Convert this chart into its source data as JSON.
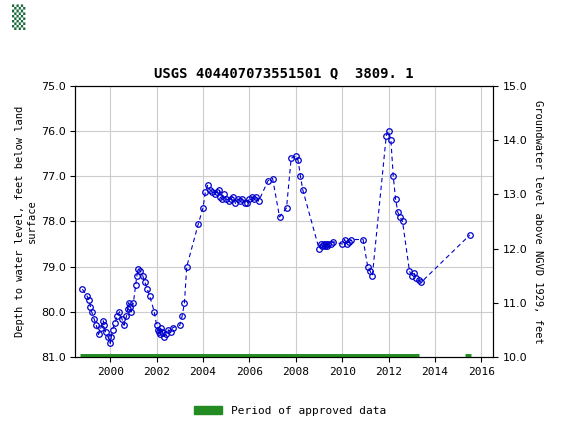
{
  "title": "USGS 404407073551501 Q  3809. 1",
  "ylabel_left": "Depth to water level, feet below land\nsurface",
  "ylabel_right": "Groundwater level above NGVD 1929, feet",
  "ylim_left": [
    81.0,
    75.0
  ],
  "ylim_right": [
    10.0,
    15.0
  ],
  "yticks_left": [
    75.0,
    76.0,
    77.0,
    78.0,
    79.0,
    80.0,
    81.0
  ],
  "yticks_right": [
    10.0,
    11.0,
    12.0,
    13.0,
    14.0,
    15.0
  ],
  "xlim": [
    1998.5,
    2016.5
  ],
  "xticks": [
    2000,
    2002,
    2004,
    2006,
    2008,
    2010,
    2012,
    2014,
    2016
  ],
  "header_color": "#1a6b3c",
  "data_color": "#0000cc",
  "approved_color": "#228B22",
  "background_color": "#ffffff",
  "grid_color": "#cccccc",
  "approved_bar_x_start": 1998.7,
  "approved_bar_x_end": 2013.3,
  "approved_bar_x2_start": 2015.3,
  "approved_bar_x2_end": 2015.55,
  "approved_bar_y": 81.0,
  "data_x": [
    1998.8,
    1999.0,
    1999.1,
    1999.15,
    1999.2,
    1999.3,
    1999.4,
    1999.5,
    1999.6,
    1999.7,
    1999.75,
    1999.8,
    1999.9,
    2000.0,
    2000.05,
    2000.1,
    2000.2,
    2000.3,
    2000.4,
    2000.5,
    2000.6,
    2000.7,
    2000.75,
    2000.8,
    2000.85,
    2000.9,
    2001.0,
    2001.1,
    2001.15,
    2001.2,
    2001.3,
    2001.4,
    2001.5,
    2001.6,
    2001.7,
    2001.9,
    2002.0,
    2002.05,
    2002.1,
    2002.15,
    2002.2,
    2002.25,
    2002.3,
    2002.4,
    2002.5,
    2002.6,
    2002.7,
    2003.0,
    2003.1,
    2003.2,
    2003.3,
    2003.8,
    2004.0,
    2004.1,
    2004.2,
    2004.3,
    2004.4,
    2004.5,
    2004.6,
    2004.7,
    2004.75,
    2004.8,
    2004.9,
    2005.0,
    2005.1,
    2005.2,
    2005.3,
    2005.4,
    2005.5,
    2005.6,
    2005.7,
    2005.8,
    2005.9,
    2006.0,
    2006.1,
    2006.2,
    2006.3,
    2006.4,
    2006.8,
    2007.0,
    2007.3,
    2007.6,
    2007.8,
    2008.0,
    2008.1,
    2008.2,
    2008.3,
    2009.0,
    2009.1,
    2009.15,
    2009.2,
    2009.25,
    2009.3,
    2009.35,
    2009.4,
    2009.5,
    2009.6,
    2010.0,
    2010.1,
    2010.2,
    2010.3,
    2010.4,
    2010.9,
    2011.1,
    2011.2,
    2011.3,
    2011.9,
    2012.0,
    2012.1,
    2012.2,
    2012.3,
    2012.4,
    2012.5,
    2012.6,
    2012.9,
    2013.0,
    2013.1,
    2013.2,
    2013.3,
    2013.4,
    2015.5
  ],
  "data_y": [
    79.5,
    79.65,
    79.75,
    79.9,
    80.0,
    80.15,
    80.3,
    80.5,
    80.35,
    80.2,
    80.3,
    80.45,
    80.55,
    80.7,
    80.55,
    80.4,
    80.25,
    80.1,
    80.0,
    80.15,
    80.3,
    80.1,
    79.95,
    79.8,
    79.9,
    80.0,
    79.8,
    79.4,
    79.2,
    79.05,
    79.1,
    79.2,
    79.35,
    79.5,
    79.65,
    80.0,
    80.3,
    80.4,
    80.45,
    80.5,
    80.35,
    80.45,
    80.55,
    80.5,
    80.4,
    80.45,
    80.35,
    80.3,
    80.1,
    79.8,
    79.0,
    78.05,
    77.7,
    77.35,
    77.2,
    77.3,
    77.35,
    77.4,
    77.35,
    77.3,
    77.45,
    77.5,
    77.4,
    77.5,
    77.55,
    77.5,
    77.45,
    77.6,
    77.5,
    77.55,
    77.5,
    77.6,
    77.6,
    77.5,
    77.45,
    77.5,
    77.45,
    77.55,
    77.1,
    77.05,
    77.9,
    77.7,
    76.6,
    76.55,
    76.65,
    77.0,
    77.3,
    78.6,
    78.5,
    78.55,
    78.5,
    78.55,
    78.5,
    78.55,
    78.5,
    78.5,
    78.45,
    78.5,
    78.4,
    78.5,
    78.45,
    78.4,
    78.4,
    79.0,
    79.1,
    79.2,
    76.1,
    76.0,
    76.2,
    77.0,
    77.5,
    77.8,
    77.9,
    78.0,
    79.1,
    79.2,
    79.15,
    79.25,
    79.3,
    79.35,
    78.3
  ]
}
